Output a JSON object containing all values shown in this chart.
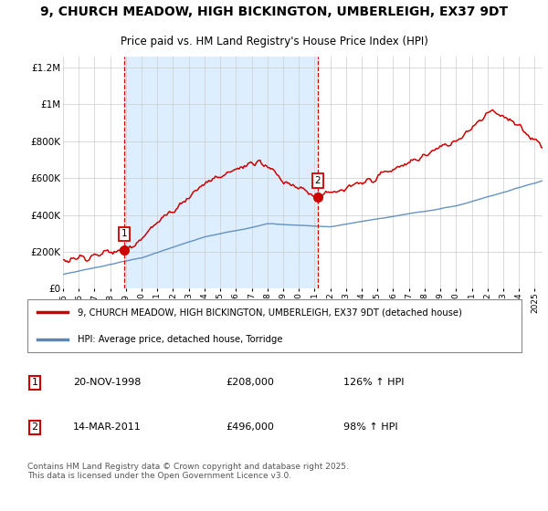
{
  "title": "9, CHURCH MEADOW, HIGH BICKINGTON, UMBERLEIGH, EX37 9DT",
  "subtitle": "Price paid vs. HM Land Registry's House Price Index (HPI)",
  "red_label": "9, CHURCH MEADOW, HIGH BICKINGTON, UMBERLEIGH, EX37 9DT (detached house)",
  "blue_label": "HPI: Average price, detached house, Torridge",
  "sale1_date": "20-NOV-1998",
  "sale1_price": "£208,000",
  "sale1_hpi": "126% ↑ HPI",
  "sale2_date": "14-MAR-2011",
  "sale2_price": "£496,000",
  "sale2_hpi": "98% ↑ HPI",
  "copyright": "Contains HM Land Registry data © Crown copyright and database right 2025.\nThis data is licensed under the Open Government Licence v3.0.",
  "ylim": [
    0,
    1260000
  ],
  "yticks": [
    0,
    200000,
    400000,
    600000,
    800000,
    1000000,
    1200000
  ],
  "ytick_labels": [
    "£0",
    "£200K",
    "£400K",
    "£600K",
    "£800K",
    "£1M",
    "£1.2M"
  ],
  "red_color": "#cc0000",
  "blue_color": "#5588bb",
  "shade_color": "#ddeeff",
  "grid_color": "#cccccc",
  "sale1_year": 1998.88,
  "sale2_year": 2011.2,
  "sale1_price_val": 208000,
  "sale2_price_val": 496000,
  "xmin": 1995,
  "xmax": 2025.5
}
